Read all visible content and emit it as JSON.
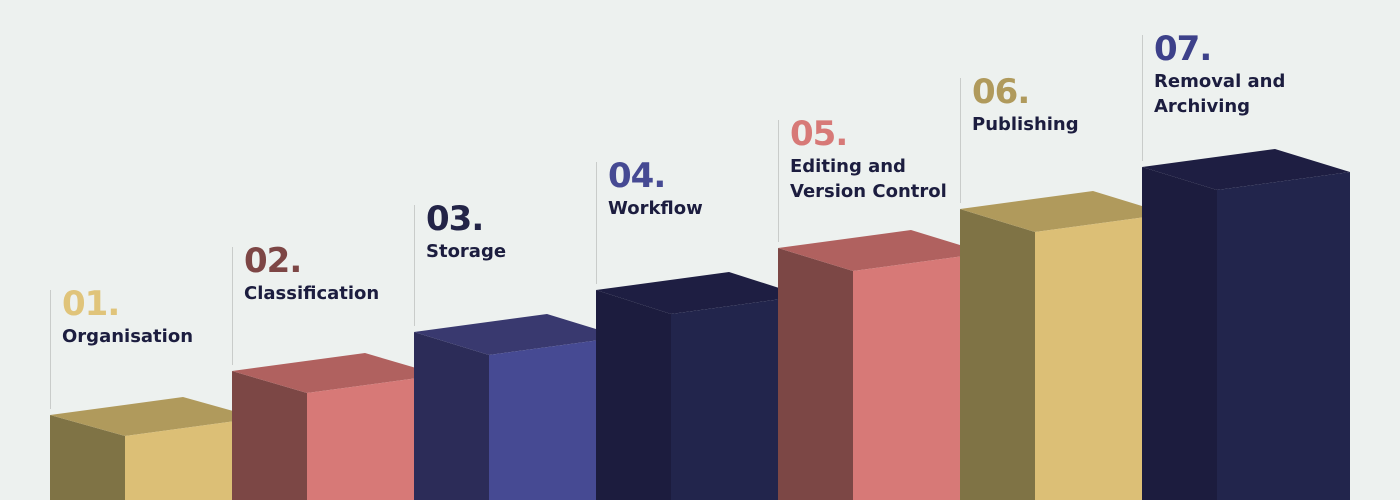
{
  "steps": [
    {
      "number": "01.",
      "title_lines": [
        "Organisation"
      ],
      "accent": "#e0c47a",
      "colors": {
        "front": "#dcbf76",
        "side": "#7f7345",
        "top": "#b09a5c"
      }
    },
    {
      "number": "02.",
      "title_lines": [
        "Classification"
      ],
      "accent": "#7d4645",
      "colors": {
        "front": "#d77977",
        "side": "#7c4745",
        "top": "#b0615f"
      }
    },
    {
      "number": "03.",
      "title_lines": [
        "Storage"
      ],
      "accent": "#232447",
      "colors": {
        "front": "#464a93",
        "side": "#2c2c58",
        "top": "#39396f"
      }
    },
    {
      "number": "04.",
      "title_lines": [
        "Workflow"
      ],
      "accent": "#464a93",
      "colors": {
        "front": "#22254c",
        "side": "#1c1c3e",
        "top": "#1e1e42"
      }
    },
    {
      "number": "05.",
      "title_lines": [
        "Editing and",
        "Version Control"
      ],
      "accent": "#d77977",
      "colors": {
        "front": "#d77977",
        "side": "#7c4745",
        "top": "#b0615f"
      }
    },
    {
      "number": "06.",
      "title_lines": [
        "Publishing"
      ],
      "accent": "#b09a5c",
      "colors": {
        "front": "#dcbf76",
        "side": "#7f7345",
        "top": "#b09a5c"
      }
    },
    {
      "number": "07.",
      "title_lines": [
        "Removal and",
        "Archiving"
      ],
      "accent": "#3d418a",
      "colors": {
        "front": "#22254c",
        "side": "#1c1c3e",
        "top": "#1e1e42"
      }
    }
  ]
}
